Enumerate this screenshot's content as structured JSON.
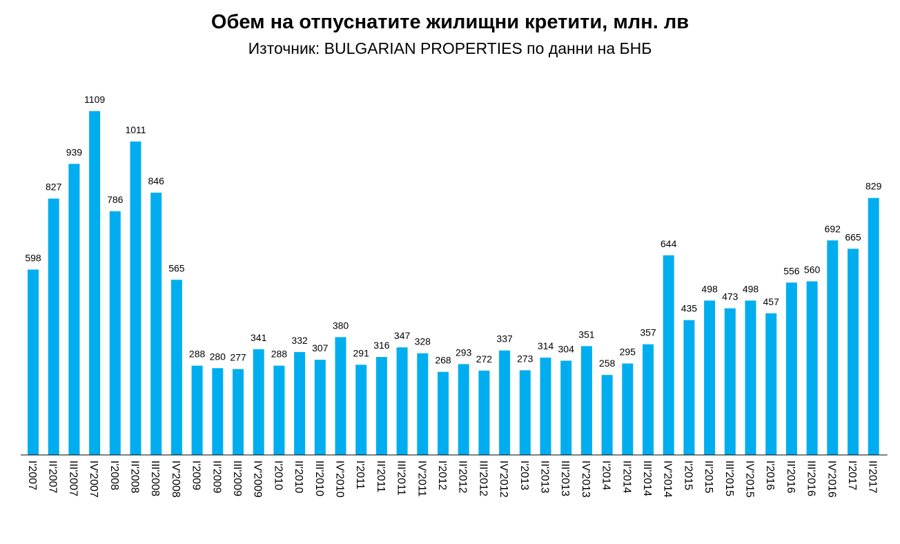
{
  "chart_data": {
    "type": "bar",
    "title": "Обем на отпуснатите жилищни кретити, млн. лв",
    "subtitle": "Източник: BULGARIAN PROPERTIES по данни на БНБ",
    "xlabel": "",
    "ylabel": "",
    "ylim": [
      0,
      1109
    ],
    "grid": false,
    "legend": "none",
    "bar_color": "#00AEEF",
    "categories": [
      "I'2007",
      "II'2007",
      "III'2007",
      "IV'2007",
      "I'2008",
      "II'2008",
      "III'2008",
      "IV'2008",
      "I'2009",
      "II'2009",
      "III'2009",
      "IV'2009",
      "I'2010",
      "II'2010",
      "III'2010",
      "IV'2010",
      "I'2011",
      "II'2011",
      "III'2011",
      "IV'2011",
      "I'2012",
      "II'2012",
      "III'2012",
      "IV'2012",
      "I'2013",
      "II'2013",
      "III'2013",
      "IV'2013",
      "I'2014",
      "II'2014",
      "III'2014",
      "IV'2014",
      "I'2015",
      "II'2015",
      "III'2015",
      "IV'2015",
      "I'2016",
      "II'2016",
      "III'2016",
      "IV'2016",
      "I'2017",
      "II'2017"
    ],
    "values": [
      598,
      827,
      939,
      1109,
      786,
      1011,
      846,
      565,
      288,
      280,
      277,
      341,
      288,
      332,
      307,
      380,
      291,
      316,
      347,
      328,
      268,
      293,
      272,
      337,
      273,
      314,
      304,
      351,
      258,
      295,
      357,
      644,
      435,
      498,
      473,
      498,
      457,
      556,
      560,
      692,
      665,
      829
    ]
  }
}
